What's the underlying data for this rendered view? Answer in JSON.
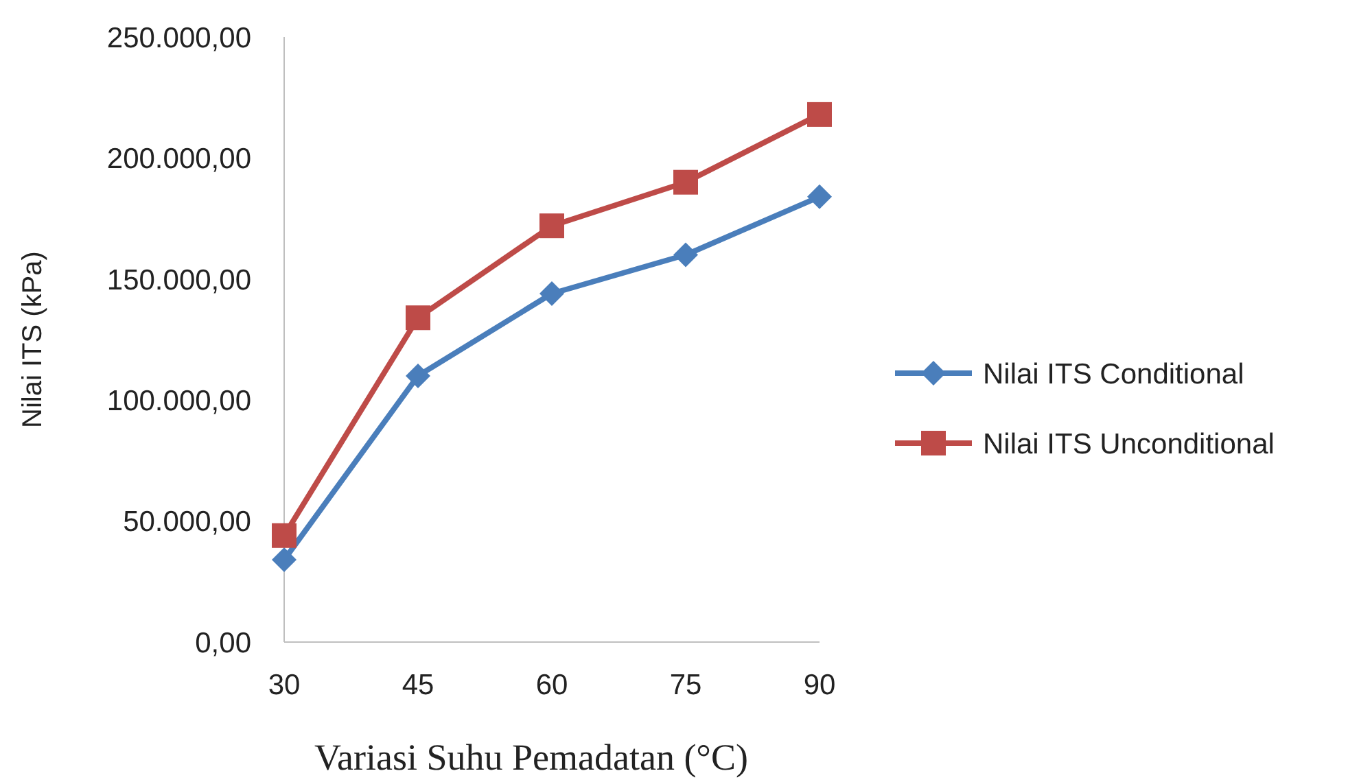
{
  "chart_data": {
    "type": "line",
    "xlabel": "Variasi  Suhu Pemadatan (°C)",
    "ylabel": "Nilai ITS (kPa)",
    "categories": [
      "30",
      "45",
      "60",
      "75",
      "90"
    ],
    "series": [
      {
        "name": "Nilai ITS Conditional",
        "color": "#4a7ebb",
        "marker": "diamond",
        "values": [
          34000,
          110000,
          144000,
          160000,
          184000
        ]
      },
      {
        "name": "Nilai ITS Unconditional",
        "color": "#be4b48",
        "marker": "square",
        "values": [
          44000,
          134000,
          172000,
          190000,
          218000
        ]
      }
    ],
    "ylim": [
      0,
      250000
    ],
    "yticks": [
      {
        "value": 0,
        "label": "0,00"
      },
      {
        "value": 50000,
        "label": "50.000,00"
      },
      {
        "value": 100000,
        "label": "100.000,00"
      },
      {
        "value": 150000,
        "label": "150.000,00"
      },
      {
        "value": 200000,
        "label": "200.000,00"
      },
      {
        "value": 250000,
        "label": "250.000,00"
      }
    ],
    "grid": false,
    "legend": "right",
    "line_style": "solid"
  }
}
